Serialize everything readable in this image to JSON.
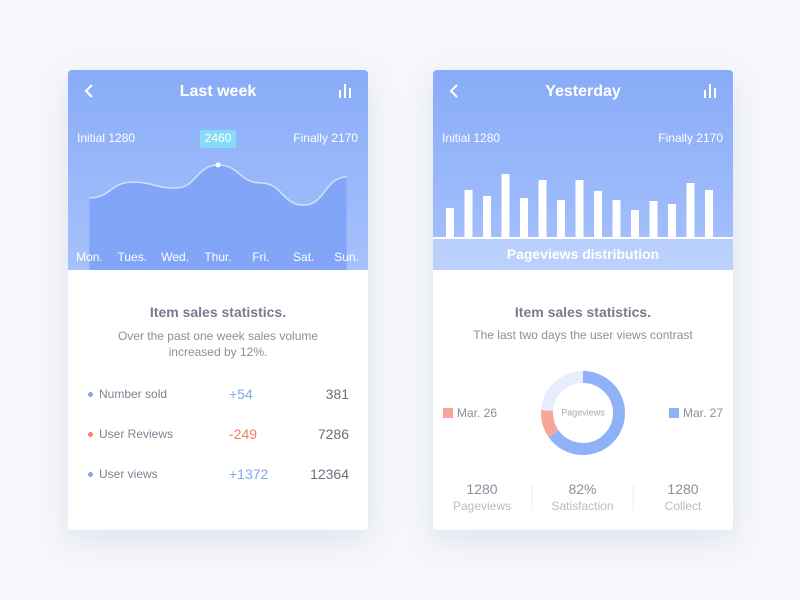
{
  "cards": [
    {
      "header": {
        "title": "Last week"
      },
      "initial": "Initial 1280",
      "final": "Finally 2170",
      "chart": {
        "type": "line",
        "categories": [
          "Mon.",
          "Tues.",
          "Wed.",
          "Thur.",
          "Fri.",
          "Sat.",
          "Sun."
        ],
        "values": [
          1690,
          2060,
          1920,
          2460,
          2040,
          1520,
          2180
        ],
        "ylim": [
          0,
          3750
        ],
        "color": "#ffffff",
        "area_color": "#82a5f7",
        "label_color": "#86dcf8"
      },
      "section_title": "Item sales statistics.",
      "description": "Over the past one week sales volume increased by 12%.",
      "rows": [
        {
          "label": "Number sold",
          "change": "+54",
          "total": "381",
          "color": "#80a8f2",
          "change_color": "#7fa8ee"
        },
        {
          "label": "User Reviews",
          "change": "-249",
          "total": "7286",
          "color": "#f5816a",
          "change_color": "#f07a62"
        },
        {
          "label": "User views",
          "change": "+1372",
          "total": "12364",
          "color": "#80a8f2",
          "change_color": "#7fa8ee"
        }
      ]
    },
    {
      "header": {
        "title": "Yesterday"
      },
      "initial": "Initial 1280",
      "final": "Finally 2170",
      "chart": {
        "type": "bar",
        "values": [
          30,
          48,
          42,
          64,
          40,
          58,
          38,
          58,
          47,
          38,
          28,
          37,
          34,
          55,
          48
        ],
        "ylim": [
          0,
          100
        ],
        "color": "#ffffff",
        "caption": "Pageviews distribution"
      },
      "section_title": "Item sales statistics.",
      "description": "The last two days the user views contrast",
      "donut": {
        "type": "donut",
        "center_label": "Pageviews",
        "ylim": [
          0,
          100
        ],
        "track_color": "#e6eefd",
        "series": [
          {
            "name": "Mar. 27",
            "color": "#8eb1f8",
            "value": 65
          },
          {
            "name": "Mar. 26",
            "color": "#f6a898",
            "value": 11
          }
        ]
      },
      "stats": [
        {
          "value": "1280",
          "label": "Pageviews"
        },
        {
          "value": "82%",
          "label": "Satisfaction"
        },
        {
          "value": "1280",
          "label": "Collect"
        }
      ]
    }
  ]
}
